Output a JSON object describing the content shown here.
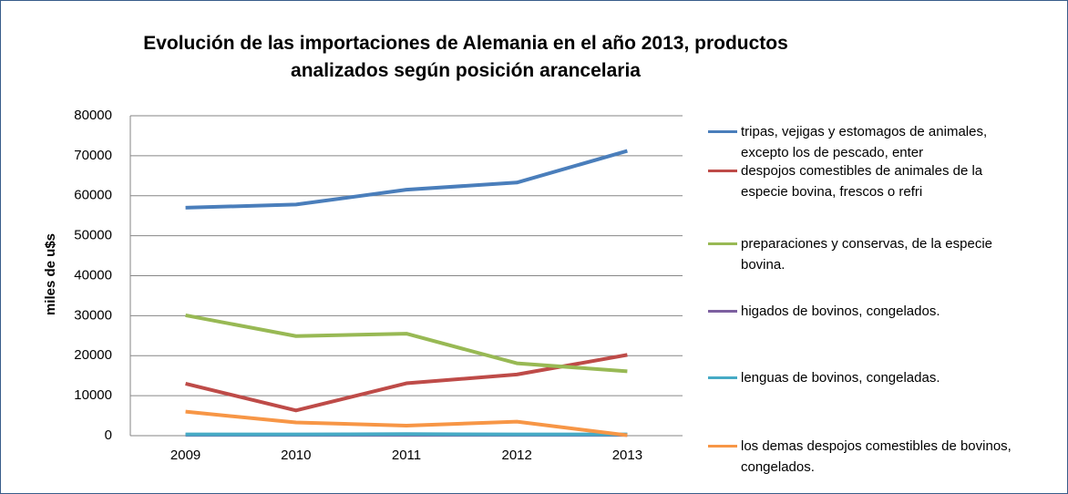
{
  "chart_data": {
    "type": "line",
    "title": "Evolución de las importaciones de Alemania en el año 2013, productos analizados según posición arancelaria",
    "y_label": "miles de u$s",
    "categories": [
      "2009",
      "2010",
      "2011",
      "2012",
      "2013"
    ],
    "ylim": [
      0,
      80000
    ],
    "yticks": [
      0,
      10000,
      20000,
      30000,
      40000,
      50000,
      60000,
      70000,
      80000
    ],
    "grid": true,
    "legend": "right",
    "series": [
      {
        "name": "tripas, vejigas y estomagos de animales, excepto los de pescado, enter",
        "color": "#4a7ebb",
        "values": [
          57000,
          57800,
          61500,
          63300,
          71200
        ]
      },
      {
        "name": "despojos comestibles de animales de la especie bovina, frescos o refri",
        "color": "#be4b48",
        "values": [
          13000,
          6300,
          13100,
          15300,
          20200
        ]
      },
      {
        "name": "preparaciones y conservas, de la especie bovina.",
        "color": "#98b954",
        "values": [
          30100,
          24900,
          25500,
          18100,
          16100
        ]
      },
      {
        "name": "higados de bovinos, congelados.",
        "color": "#7d60a0",
        "values": [
          200,
          200,
          200,
          200,
          200
        ]
      },
      {
        "name": "lenguas de bovinos, congeladas.",
        "color": "#46aac5",
        "values": [
          300,
          300,
          400,
          300,
          300
        ]
      },
      {
        "name": "los demas despojos comestibles de bovinos, congelados.",
        "color": "#f79646",
        "values": [
          6000,
          3300,
          2500,
          3500,
          100
        ]
      }
    ]
  }
}
